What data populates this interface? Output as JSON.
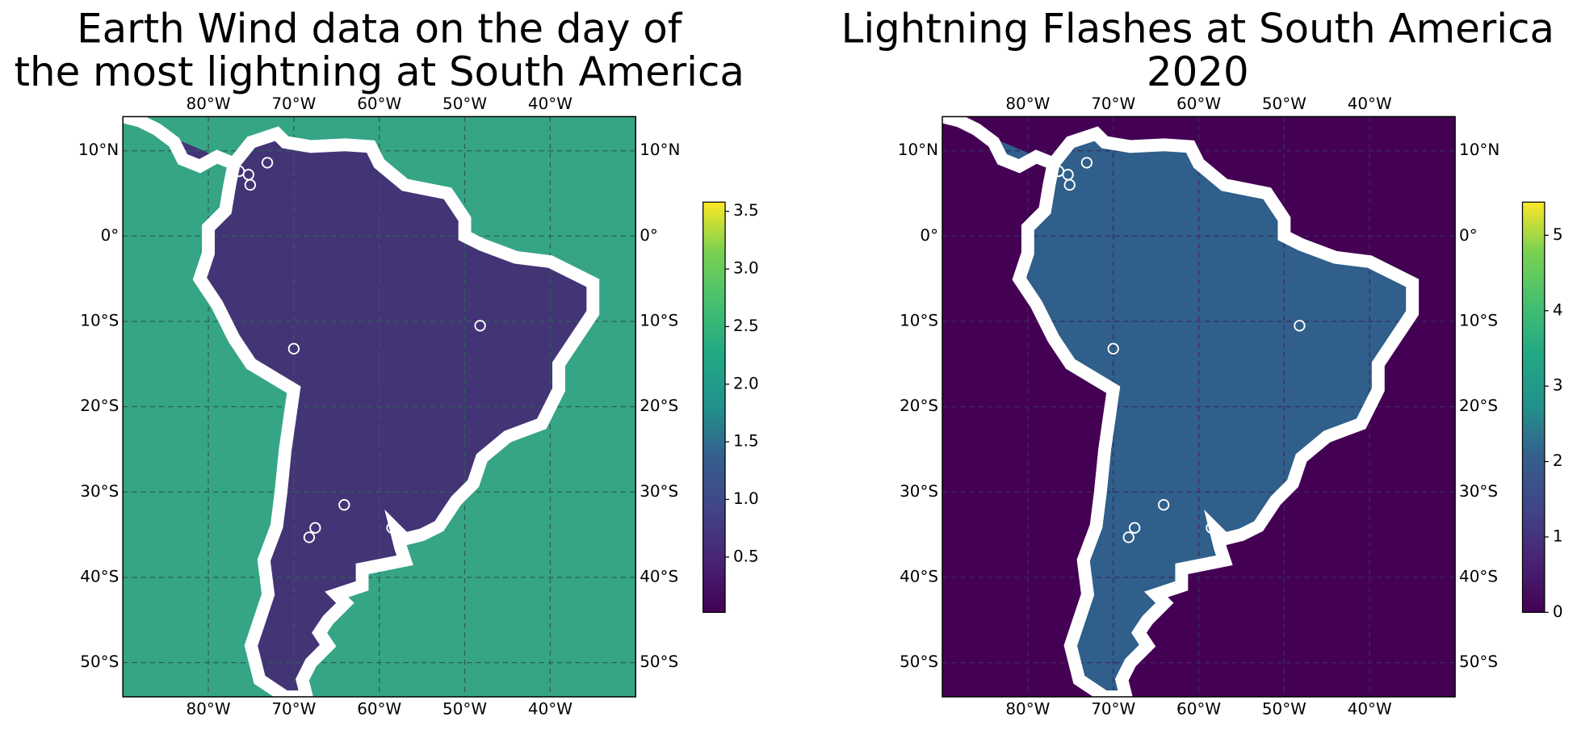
{
  "chart_data": [
    {
      "type": "map",
      "title": [
        "Earth Wind data on the day of",
        "the most lightning at South America"
      ],
      "xlim": [
        -90,
        -30
      ],
      "ylim": [
        -54,
        14
      ],
      "xticks": [
        {
          "value": -80,
          "label": "80°W"
        },
        {
          "value": -70,
          "label": "70°W"
        },
        {
          "value": -60,
          "label": "60°W"
        },
        {
          "value": -50,
          "label": "50°W"
        },
        {
          "value": -40,
          "label": "40°W"
        }
      ],
      "yticks": [
        {
          "value": 10,
          "label": "10°N"
        },
        {
          "value": 0,
          "label": "0°"
        },
        {
          "value": -10,
          "label": "10°S"
        },
        {
          "value": -20,
          "label": "20°S"
        },
        {
          "value": -30,
          "label": "30°S"
        },
        {
          "value": -40,
          "label": "40°S"
        },
        {
          "value": -50,
          "label": "50°S"
        }
      ],
      "grid": true,
      "ocean_color": "#35a585",
      "land_color": "#433476",
      "grid_color": "#2d5f55",
      "colorbar": {
        "lim": [
          0.02,
          3.58
        ],
        "ticks": [
          0.5,
          {
            "value": 1,
            "label": "1.0"
          },
          1.5,
          {
            "value": 2,
            "label": "2.0"
          },
          2.5,
          {
            "value": 3,
            "label": "3.0"
          },
          3.5
        ]
      },
      "markers": {
        "lon": [
          -76.4,
          -75.3,
          -75.1,
          -73.1,
          -70.0,
          -48.2,
          -64.1,
          -67.5,
          -68.2,
          -58.5
        ],
        "lat": [
          7.6,
          7.2,
          6.0,
          8.6,
          -13.2,
          -10.5,
          -31.5,
          -34.2,
          -35.3,
          -34.2
        ]
      }
    },
    {
      "type": "map",
      "title": [
        "Lightning Flashes at South America",
        "2020"
      ],
      "xlim": [
        -90,
        -30
      ],
      "ylim": [
        -54,
        14
      ],
      "xticks": [
        {
          "value": -80,
          "label": "80°W"
        },
        {
          "value": -70,
          "label": "70°W"
        },
        {
          "value": -60,
          "label": "60°W"
        },
        {
          "value": -50,
          "label": "50°W"
        },
        {
          "value": -40,
          "label": "40°W"
        }
      ],
      "yticks": [
        {
          "value": 10,
          "label": "10°N"
        },
        {
          "value": 0,
          "label": "0°"
        },
        {
          "value": -10,
          "label": "10°S"
        },
        {
          "value": -20,
          "label": "20°S"
        },
        {
          "value": -30,
          "label": "30°S"
        },
        {
          "value": -40,
          "label": "40°S"
        },
        {
          "value": -50,
          "label": "50°S"
        }
      ],
      "grid": true,
      "ocean_color": "#440154",
      "land_color": "#2f5f8a",
      "grid_color": "#3a2a5a",
      "colorbar": {
        "lim": [
          0,
          5.44
        ],
        "ticks": [
          0,
          1,
          2,
          3,
          4,
          5
        ]
      },
      "markers": {
        "lon": [
          -76.4,
          -75.3,
          -75.1,
          -73.1,
          -70.0,
          -48.2,
          -64.1,
          -67.5,
          -68.2,
          -58.5
        ],
        "lat": [
          7.6,
          7.2,
          6.0,
          8.6,
          -13.2,
          -10.5,
          -31.5,
          -34.2,
          -35.3,
          -34.2
        ]
      }
    }
  ]
}
